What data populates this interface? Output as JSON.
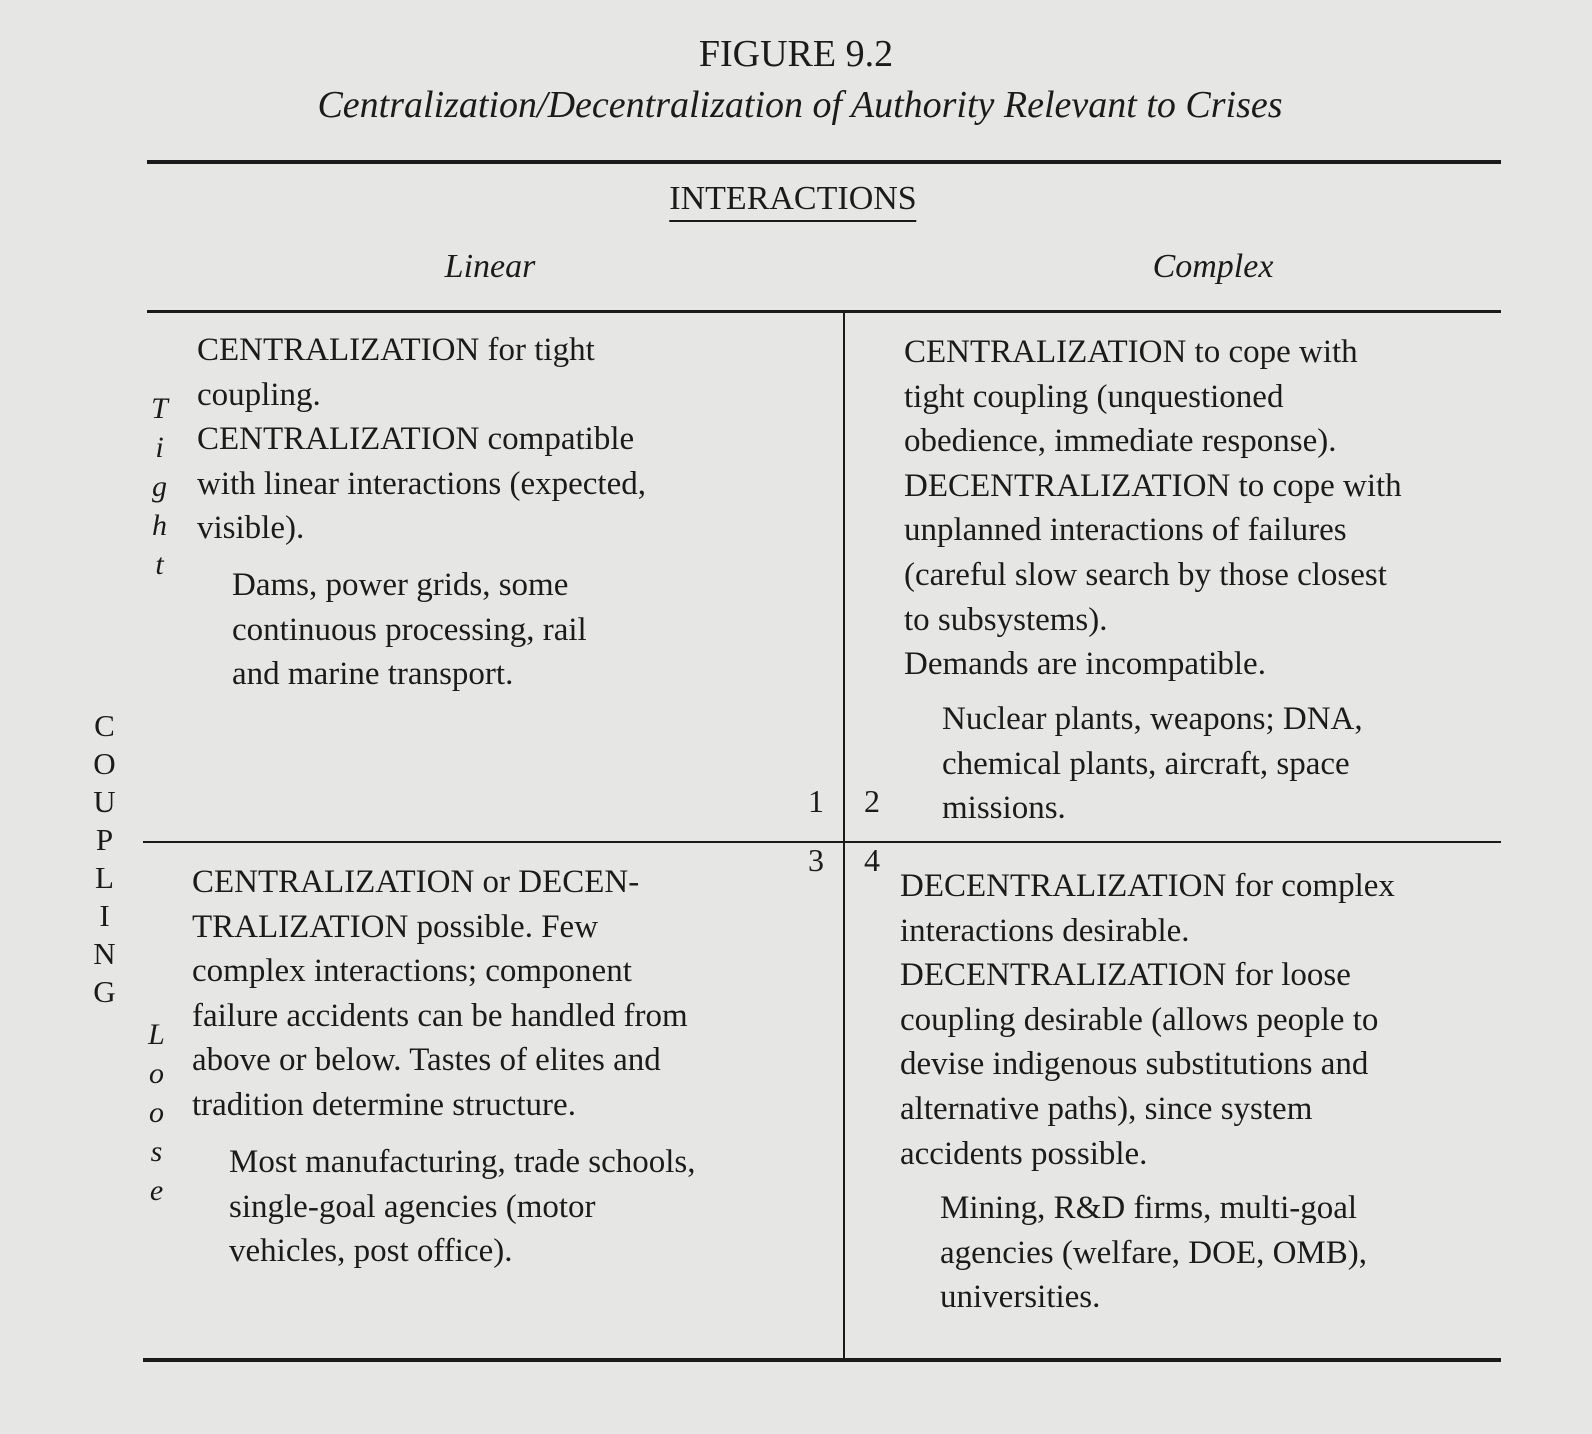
{
  "figure": {
    "label": "FIGURE 9.2",
    "title": "Centralization/Decentralization of Authority Relevant to Crises"
  },
  "header": {
    "title": "INTERACTIONS",
    "columns": [
      "Linear",
      "Complex"
    ]
  },
  "side": {
    "title": "COUPLING",
    "rows": [
      "Tight",
      "Loose"
    ]
  },
  "cells": [
    {
      "number": "1",
      "text": [
        "CENTRALIZATION for tight",
        "coupling.",
        "CENTRALIZATION compatible",
        "with linear interactions (expected,",
        "visible)."
      ],
      "examples": [
        "Dams, power grids, some",
        "continuous processing, rail",
        "and marine transport."
      ]
    },
    {
      "number": "2",
      "text": [
        "CENTRALIZATION to cope with",
        "tight coupling (unquestioned",
        "obedience, immediate response).",
        "DECENTRALIZATION to cope with",
        "unplanned interactions of failures",
        "(careful slow search by those closest",
        "to subsystems).",
        "Demands are incompatible."
      ],
      "examples": [
        "Nuclear plants, weapons; DNA,",
        "chemical plants, aircraft, space",
        "missions."
      ]
    },
    {
      "number": "3",
      "text": [
        "CENTRALIZATION or DECEN-",
        "TRALIZATION possible. Few",
        "complex interactions; component",
        "failure accidents can be handled from",
        "above or below. Tastes of elites and",
        "tradition determine structure."
      ],
      "examples": [
        "Most manufacturing, trade schools,",
        "single-goal agencies (motor",
        "vehicles, post office)."
      ]
    },
    {
      "number": "4",
      "text": [
        "DECENTRALIZATION for complex",
        "interactions desirable.",
        "DECENTRALIZATION for loose",
        "coupling desirable (allows people to",
        "devise indigenous substitutions and",
        "alternative paths), since system",
        "accidents possible."
      ],
      "examples": [
        "Mining, R&D firms, multi-goal",
        "agencies (welfare, DOE, OMB),",
        "universities."
      ]
    }
  ]
}
